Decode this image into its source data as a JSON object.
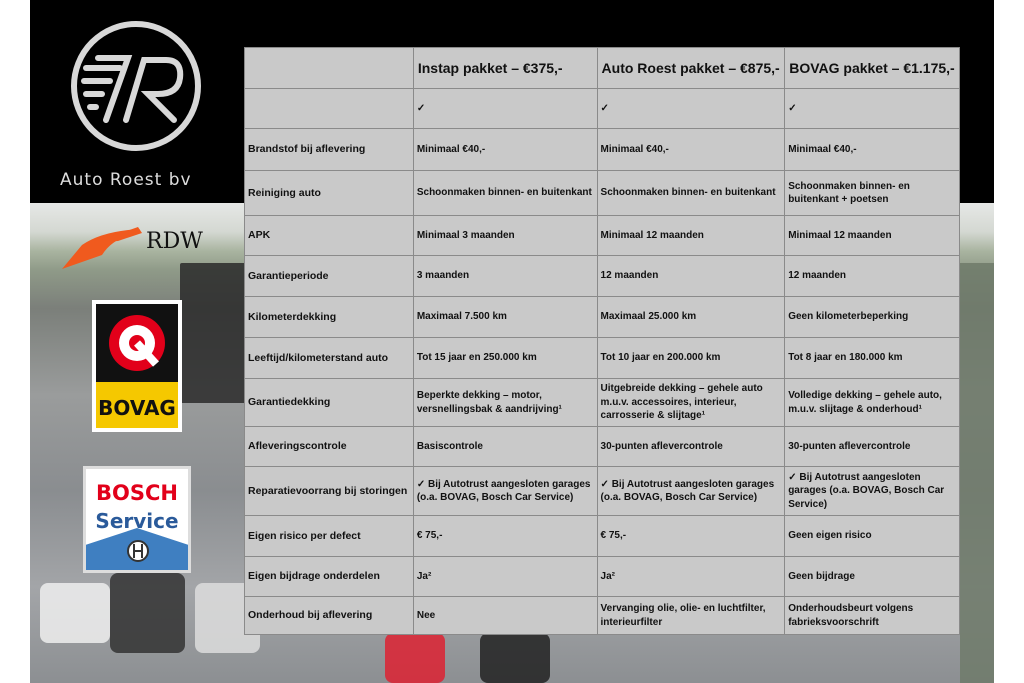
{
  "brand": {
    "name": "Auto Roest bv",
    "logo_text": "R"
  },
  "logos": {
    "rdw": "RDW",
    "bovag": "BOVAG",
    "bosch_line1": "BOSCH",
    "bosch_line2": "Service"
  },
  "table": {
    "headers": [
      "",
      "Instap pakket – €375,-",
      "Auto Roest pakket – €875,-",
      "BOVAG pakket – €1.175,-"
    ],
    "rows": [
      {
        "label": "",
        "values": [
          "✓",
          "✓",
          "✓"
        ]
      },
      {
        "label": "Brandstof bij aflevering",
        "values": [
          "Minimaal €40,-",
          "Minimaal €40,-",
          "Minimaal €40,-"
        ]
      },
      {
        "label": "Reiniging auto",
        "values": [
          "Schoonmaken binnen- en buitenkant",
          "Schoonmaken binnen- en buitenkant",
          "Schoonmaken binnen- en buitenkant + poetsen"
        ]
      },
      {
        "label": "APK",
        "values": [
          "Minimaal 3 maanden",
          "Minimaal 12 maanden",
          "Minimaal 12 maanden"
        ]
      },
      {
        "label": "Garantieperiode",
        "values": [
          "3 maanden",
          "12 maanden",
          "12 maanden"
        ]
      },
      {
        "label": "Kilometerdekking",
        "values": [
          "Maximaal 7.500 km",
          "Maximaal 25.000 km",
          "Geen kilometerbeperking"
        ]
      },
      {
        "label": "Leeftijd/kilometerstand auto",
        "values": [
          "Tot 15 jaar en 250.000 km",
          "Tot 10 jaar en 200.000 km",
          "Tot 8 jaar en 180.000 km"
        ]
      },
      {
        "label": "Garantiedekking",
        "values": [
          "Beperkte dekking – motor, versnellingsbak & aandrijving¹",
          "Uitgebreide dekking – gehele auto m.u.v. accessoires, interieur, carrosserie & slijtage¹",
          "Volledige dekking – gehele auto, m.u.v. slijtage & onderhoud¹"
        ]
      },
      {
        "label": "Afleveringscontrole",
        "values": [
          "Basiscontrole",
          "30-punten aflevercontrole",
          "30-punten aflevercontrole"
        ]
      },
      {
        "label": "Reparatievoorrang bij storingen",
        "values": [
          "✓ Bij Autotrust aangesloten garages (o.a. BOVAG, Bosch Car Service)",
          "✓ Bij Autotrust aangesloten garages (o.a. BOVAG, Bosch Car Service)",
          "✓ Bij Autotrust aangesloten garages (o.a. BOVAG, Bosch Car Service)"
        ]
      },
      {
        "label": "Eigen risico per defect",
        "values": [
          "€ 75,-",
          "€ 75,-",
          "Geen eigen risico"
        ]
      },
      {
        "label": "Eigen bijdrage onderdelen",
        "values": [
          "Ja²",
          "Ja²",
          "Geen bijdrage"
        ]
      },
      {
        "label": "Onderhoud bij aflevering",
        "values": [
          "Nee",
          "Vervanging olie, olie- en luchtfilter, interieurfilter",
          "Onderhoudsbeurt volgens fabrieksvoorschrift"
        ]
      }
    ]
  }
}
